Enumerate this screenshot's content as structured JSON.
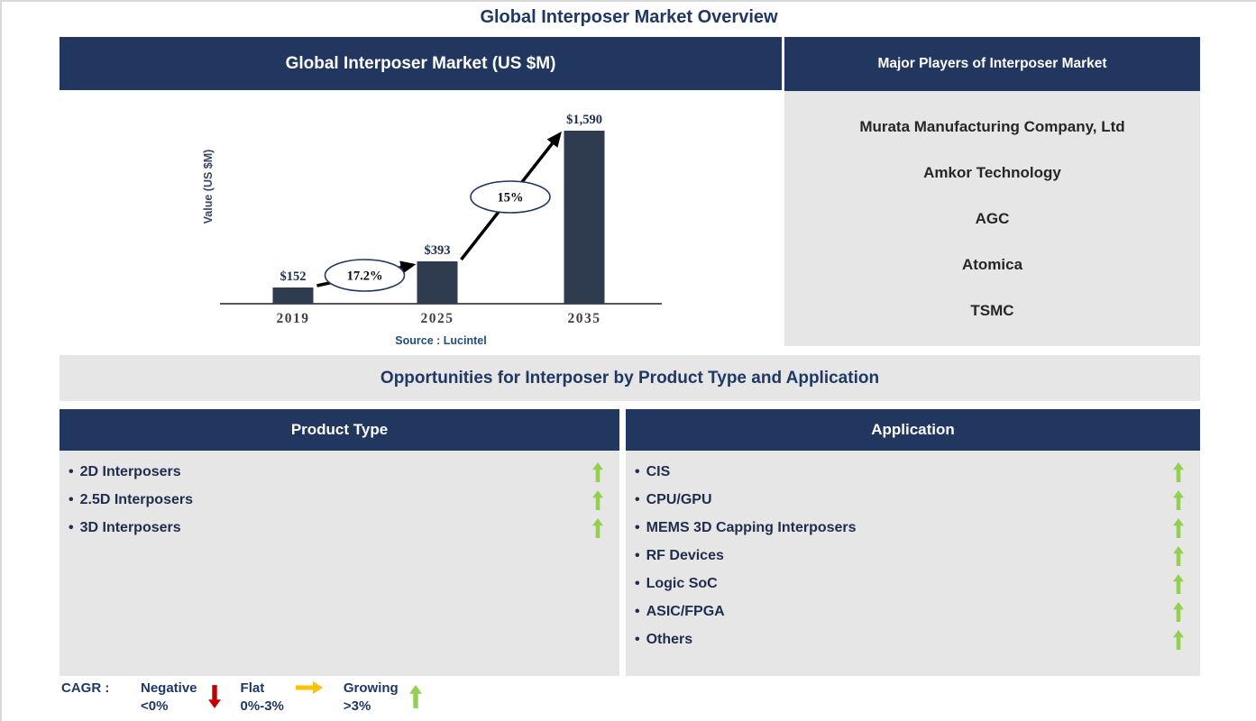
{
  "page_title": "Global Interposer Market Overview",
  "colors": {
    "navy_header": "#21375f",
    "text_navy": "#1f3864",
    "panel_gray": "#e7e6e6",
    "bar_fill": "#2f3b4f",
    "growing_green": "#92d050",
    "negative_red": "#c00000",
    "flat_orange": "#ffc000",
    "source_blue": "#1f4e79",
    "tick_gray": "#404040"
  },
  "market_chart_panel": {
    "header": "Global Interposer Market (US $M)"
  },
  "chart_data": {
    "type": "bar",
    "title": "Global Interposer Market (US $M)",
    "categories": [
      "2019",
      "2025",
      "2035"
    ],
    "values": [
      152,
      393,
      1590
    ],
    "value_labels": [
      "$152",
      "$393",
      "$1,590"
    ],
    "xlabel": "",
    "ylabel": "Value (US $M)",
    "ylim": [
      0,
      1700
    ],
    "grid": false,
    "legend_position": "none",
    "source": "Source : Lucintel",
    "growth_annotations": [
      {
        "from": "2019",
        "to": "2025",
        "cagr_label": "17.2%"
      },
      {
        "from": "2025",
        "to": "2035",
        "cagr_label": "15%"
      }
    ]
  },
  "major_players": {
    "header": "Major Players of Interposer Market",
    "companies": [
      "Murata Manufacturing Company, Ltd",
      "Amkor Technology",
      "AGC",
      "Atomica",
      "TSMC"
    ]
  },
  "opportunities": {
    "banner": "Opportunities for Interposer by Product Type and Application",
    "product_type": {
      "header": "Product Type",
      "items": [
        {
          "label": "2D Interposers",
          "trend": "growing"
        },
        {
          "label": "2.5D Interposers",
          "trend": "growing"
        },
        {
          "label": "3D Interposers",
          "trend": "growing"
        }
      ]
    },
    "application": {
      "header": "Application",
      "items": [
        {
          "label": "CIS",
          "trend": "growing"
        },
        {
          "label": "CPU/GPU",
          "trend": "growing"
        },
        {
          "label": "MEMS 3D Capping Interposers",
          "trend": "growing"
        },
        {
          "label": "RF Devices",
          "trend": "growing"
        },
        {
          "label": "Logic SoC",
          "trend": "growing"
        },
        {
          "label": "ASIC/FPGA",
          "trend": "growing"
        },
        {
          "label": "Others",
          "trend": "growing"
        }
      ]
    }
  },
  "legend": {
    "prefix": "CAGR :",
    "items": [
      {
        "label": "Negative",
        "range": "<0%",
        "direction": "down",
        "color": "#c00000"
      },
      {
        "label": "Flat",
        "range": "0%-3%",
        "direction": "right",
        "color": "#ffc000"
      },
      {
        "label": "Growing",
        "range": ">3%",
        "direction": "up",
        "color": "#92d050"
      }
    ]
  }
}
